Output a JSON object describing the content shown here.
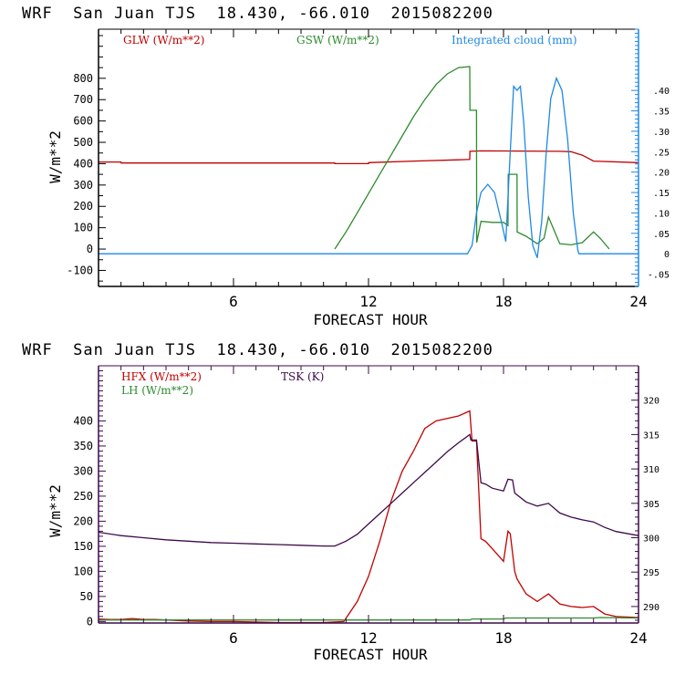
{
  "chart_data": [
    {
      "type": "line",
      "title": "WRF  San Juan TJS  18.430, -66.010  2015082200",
      "xlabel": "FORECAST HOUR",
      "ylabel": "W/m**2",
      "xlim": [
        0,
        24
      ],
      "ylim": [
        -175,
        1030
      ],
      "y2lim": [
        -0.08,
        0.55
      ],
      "x_ticks": [
        6,
        12,
        18,
        24
      ],
      "x_tick_labels": [
        "6",
        "12",
        "18",
        "24"
      ],
      "y_ticks": [
        -100,
        0,
        100,
        200,
        300,
        400,
        500,
        600,
        700,
        800
      ],
      "y_tick_labels": [
        "-100",
        "0",
        "100",
        "200",
        "300",
        "400",
        "500",
        "600",
        "700",
        "800"
      ],
      "y2_ticks": [
        -0.05,
        0,
        0.05,
        0.1,
        0.15,
        0.2,
        0.25,
        0.3,
        0.35,
        0.4
      ],
      "y2_tick_labels": [
        "-.05",
        "0",
        ".05",
        ".10",
        ".15",
        ".20",
        ".25",
        ".30",
        ".35",
        ".40"
      ],
      "axis_color": "#000000",
      "right_axis_color": "#1e88e5",
      "legend_placement": "top",
      "series": [
        {
          "name": "GLW (W/m**2)",
          "color": "#c00000",
          "axis": "left",
          "x": [
            0,
            1,
            1.01,
            6,
            10.5,
            10.51,
            12,
            12.01,
            14,
            16,
            16.5,
            16.51,
            17,
            20.5,
            21,
            21.5,
            22,
            24
          ],
          "y": [
            408,
            408,
            403,
            403,
            403,
            400,
            400,
            405,
            412,
            418,
            420,
            458,
            460,
            458,
            456,
            440,
            412,
            405
          ]
        },
        {
          "name": "GSW (W/m**2)",
          "color": "#2e8b2e",
          "axis": "left",
          "x": [
            10.5,
            11,
            11.5,
            12,
            12.5,
            13,
            13.5,
            14,
            14.5,
            15,
            15.5,
            16,
            16.5,
            16.51,
            16.8,
            16.81,
            17,
            17.5,
            18,
            18.2,
            18.21,
            18.6,
            18.61,
            19,
            19.5,
            19.8,
            20,
            20.5,
            21,
            21.5,
            22,
            22.3,
            22.7
          ],
          "y": [
            0,
            80,
            170,
            260,
            350,
            440,
            530,
            620,
            700,
            770,
            820,
            850,
            855,
            650,
            650,
            30,
            130,
            125,
            125,
            110,
            350,
            350,
            80,
            60,
            25,
            50,
            150,
            25,
            20,
            30,
            80,
            50,
            0
          ]
        },
        {
          "name": "Integrated cloud (mm)",
          "color": "#1e88e5",
          "axis": "right",
          "x": [
            0,
            16.4,
            16.6,
            16.8,
            17.0,
            17.3,
            17.6,
            17.9,
            18.1,
            18.3,
            18.45,
            18.6,
            18.75,
            18.9,
            19.1,
            19.3,
            19.5,
            19.7,
            19.9,
            20.1,
            20.35,
            20.6,
            20.85,
            21.1,
            21.3,
            21.35,
            24
          ],
          "y": [
            0,
            0,
            0.02,
            0.1,
            0.15,
            0.17,
            0.15,
            0.08,
            0.03,
            0.25,
            0.41,
            0.4,
            0.41,
            0.32,
            0.14,
            0.02,
            -0.01,
            0.08,
            0.25,
            0.38,
            0.43,
            0.4,
            0.28,
            0.1,
            0.01,
            0,
            0
          ]
        }
      ]
    },
    {
      "type": "line",
      "title": "WRF  San Juan TJS  18.430, -66.010  2015082200",
      "xlabel": "FORECAST HOUR",
      "ylabel": "W/m**2",
      "xlim": [
        0,
        24
      ],
      "ylim": [
        -3,
        510
      ],
      "y2lim": [
        287.6,
        325.0
      ],
      "x_ticks": [
        6,
        12,
        18,
        24
      ],
      "x_tick_labels": [
        "6",
        "12",
        "18",
        "24"
      ],
      "y_ticks": [
        0,
        50,
        100,
        150,
        200,
        250,
        300,
        350,
        400
      ],
      "y_tick_labels": [
        "0",
        "50",
        "100",
        "150",
        "200",
        "250",
        "300",
        "350",
        "400"
      ],
      "y2_ticks": [
        290,
        295,
        300,
        305,
        310,
        315,
        320
      ],
      "y2_tick_labels": [
        "290",
        "295",
        "300",
        "305",
        "310",
        "315",
        "320"
      ],
      "axis_color": "#3d0a4a",
      "legend_placement": "top",
      "series": [
        {
          "name": "HFX (W/m**2)",
          "color": "#c00000",
          "axis": "left",
          "x": [
            0,
            0.5,
            1,
            1.5,
            2,
            2.5,
            3,
            4,
            5,
            6,
            8,
            10,
            10.9,
            11.5,
            12,
            12.5,
            13,
            13.5,
            14,
            14.5,
            15,
            15.5,
            16,
            16.5,
            16.6,
            16.8,
            17.0,
            17.2,
            17.5,
            18,
            18.2,
            18.3,
            18.5,
            18.6,
            19,
            19.5,
            20,
            20.5,
            21,
            21.5,
            22,
            22.5,
            23,
            24
          ],
          "y": [
            5,
            4,
            4,
            6,
            4,
            4,
            3,
            1,
            0,
            0,
            -2,
            -2,
            0,
            40,
            90,
            160,
            240,
            300,
            340,
            385,
            400,
            405,
            410,
            420,
            360,
            360,
            165,
            160,
            145,
            120,
            180,
            175,
            100,
            85,
            55,
            40,
            55,
            35,
            30,
            28,
            30,
            15,
            10,
            8
          ]
        },
        {
          "name": "LH (W/m**2)",
          "color": "#2e8b2e",
          "axis": "left",
          "x": [
            0,
            10,
            16.5,
            16.6,
            18,
            18.1,
            22,
            22.3,
            24
          ],
          "y": [
            3,
            3,
            3,
            5,
            5,
            7,
            7,
            8,
            7
          ]
        },
        {
          "name": "TSK (K)",
          "color": "#3d0a4a",
          "axis": "right",
          "x": [
            0,
            1,
            2,
            3,
            4,
            5,
            6,
            7,
            8,
            9,
            10,
            10.5,
            11,
            11.5,
            12,
            12.5,
            13,
            13.5,
            14,
            14.5,
            15,
            15.5,
            16,
            16.5,
            16.55,
            16.8,
            17.0,
            17.2,
            17.5,
            18,
            18.2,
            18.4,
            18.5,
            19,
            19.5,
            20,
            20.5,
            21,
            21.5,
            22,
            22.5,
            23,
            24
          ],
          "y": [
            300.8,
            300.3,
            300.0,
            299.7,
            299.5,
            299.3,
            299.2,
            299.1,
            299.0,
            298.9,
            298.8,
            298.8,
            299.5,
            300.5,
            302.0,
            303.5,
            305.0,
            306.5,
            308.0,
            309.5,
            311.0,
            312.5,
            313.8,
            315.0,
            314.2,
            314.2,
            308.0,
            307.8,
            307.2,
            306.8,
            308.5,
            308.4,
            306.5,
            305.2,
            304.6,
            305.0,
            303.6,
            303.0,
            302.6,
            302.3,
            301.5,
            300.9,
            300.3
          ]
        }
      ]
    }
  ]
}
